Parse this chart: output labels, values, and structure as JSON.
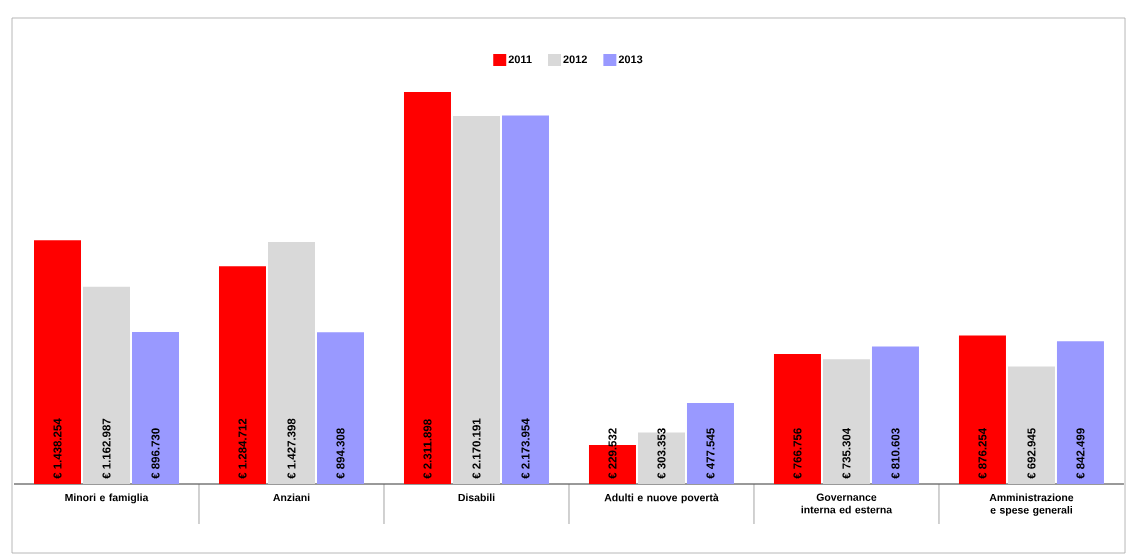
{
  "chart_data": {
    "type": "bar",
    "categories": [
      "Minori e famiglia",
      "Anziani",
      "Disabili",
      "Adulti e nuove povertà",
      "Governance interna ed esterna",
      "Amministrazione e spese generali"
    ],
    "series": [
      {
        "name": "2011",
        "color": "#ff0000",
        "values": [
          1438254,
          1284712,
          2311898,
          229532,
          766756,
          876254
        ],
        "value_labels": [
          "€ 1.438.254",
          "€ 1.284.712",
          "€ 2.311.898",
          "€ 229.532",
          "€ 766.756",
          "€ 876.254"
        ]
      },
      {
        "name": "2012",
        "color": "#d9d9d9",
        "values": [
          1162987,
          1427398,
          2170191,
          303353,
          735304,
          692945
        ],
        "value_labels": [
          "€ 1.162.987",
          "€ 1.427.398",
          "€ 2.170.191",
          "€ 303.353",
          "€ 735.304",
          "€ 692.945"
        ]
      },
      {
        "name": "2013",
        "color": "#9999ff",
        "values": [
          896730,
          894308,
          2173954,
          477545,
          810603,
          842499
        ],
        "value_labels": [
          "€ 896.730",
          "€ 894.308",
          "€ 2.173.954",
          "€ 477.545",
          "€ 810.603",
          "€ 842.499"
        ]
      }
    ],
    "legend": "top"
  }
}
